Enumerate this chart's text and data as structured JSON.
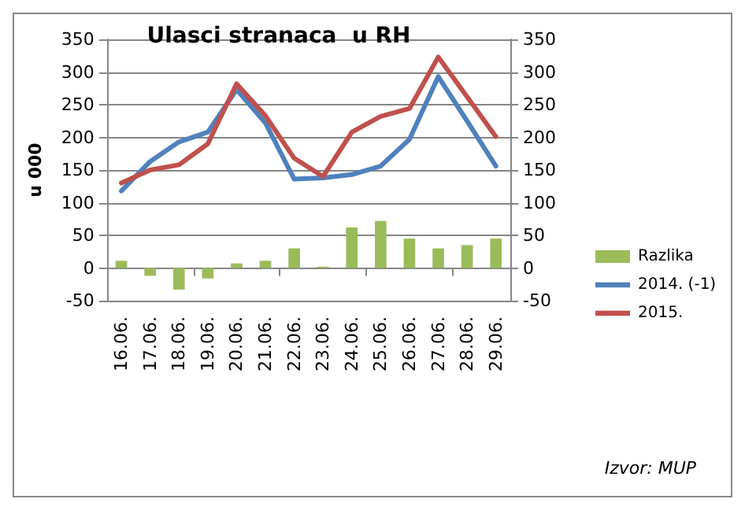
{
  "chart_data": {
    "type": "bar",
    "title": "Ulasci stranaca  u RH",
    "ylabel": "u 000",
    "categories": [
      "16.06.",
      "17.06.",
      "18.06.",
      "19.06.",
      "20.06.",
      "21.06.",
      "22.06.",
      "23.06.",
      "24.06.",
      "25.06.",
      "26.06.",
      "27.06.",
      "28.06.",
      "29.06."
    ],
    "series": [
      {
        "name": "Razlika",
        "color": "#9bbb59",
        "values": [
          11,
          -12,
          -33,
          -16,
          7,
          11,
          30,
          2,
          62,
          72,
          45,
          30,
          35,
          45
        ]
      },
      {
        "name": "2014. (-1)",
        "type": "line",
        "color": "#4f81bd",
        "values": [
          118,
          163,
          193,
          208,
          273,
          222,
          136,
          138,
          143,
          156,
          197,
          293,
          225,
          156
        ]
      },
      {
        "name": "2015.",
        "type": "line",
        "color": "#c0504d",
        "values": [
          130,
          150,
          158,
          190,
          282,
          233,
          168,
          140,
          208,
          232,
          244,
          323,
          262,
          201
        ]
      }
    ],
    "ylim": [
      -50,
      350
    ],
    "yticks": [
      -50,
      0,
      50,
      100,
      150,
      200,
      250,
      300,
      350
    ],
    "y2lim": [
      -50,
      350
    ],
    "y2ticks": [
      -50,
      0,
      50,
      100,
      150,
      200,
      250,
      300,
      350
    ],
    "grid": "y",
    "legend": "right",
    "marker": "none",
    "line_style": "solid",
    "annotations": [
      "Izvor: MUP"
    ]
  }
}
